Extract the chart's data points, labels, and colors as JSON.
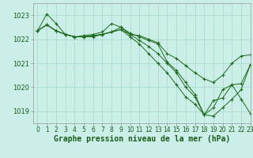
{
  "title": "Graphe pression niveau de la mer (hPa)",
  "bg_color": "#cceee8",
  "grid_color": "#aaddcc",
  "line_color": "#1a6b1a",
  "xlim": [
    -0.5,
    23
  ],
  "ylim": [
    1018.5,
    1023.5
  ],
  "yticks": [
    1019,
    1020,
    1021,
    1022,
    1023
  ],
  "xtick_labels": [
    "0",
    "1",
    "2",
    "3",
    "4",
    "5",
    "6",
    "7",
    "8",
    "9",
    "10",
    "11",
    "12",
    "13",
    "14",
    "15",
    "16",
    "17",
    "18",
    "19",
    "20",
    "21",
    "22",
    "23"
  ],
  "series": [
    [
      1022.35,
      1023.05,
      1022.65,
      1022.2,
      1022.1,
      1022.1,
      1022.1,
      1022.2,
      1022.3,
      1022.5,
      1022.2,
      1022.15,
      1022.0,
      1021.85,
      1021.4,
      1021.2,
      1020.9,
      1020.6,
      1020.35,
      1020.2,
      1020.5,
      1021.0,
      1021.3,
      1021.35
    ],
    [
      1022.35,
      1022.6,
      1022.35,
      1022.2,
      1022.1,
      1022.15,
      1022.2,
      1022.3,
      1022.65,
      1022.5,
      1022.25,
      1022.1,
      1021.95,
      1021.8,
      1021.05,
      1020.7,
      1020.2,
      1019.7,
      1018.85,
      1019.45,
      1019.55,
      1020.1,
      1019.5,
      1018.9
    ],
    [
      1022.35,
      1022.6,
      1022.35,
      1022.2,
      1022.1,
      1022.1,
      1022.15,
      1022.2,
      1022.3,
      1022.4,
      1022.2,
      1021.95,
      1021.7,
      1021.4,
      1021.0,
      1020.6,
      1020.0,
      1019.6,
      1018.85,
      1019.15,
      1019.9,
      1020.1,
      1020.15,
      1020.95
    ],
    [
      1022.35,
      1022.6,
      1022.35,
      1022.2,
      1022.1,
      1022.1,
      1022.15,
      1022.2,
      1022.3,
      1022.4,
      1022.1,
      1021.8,
      1021.4,
      1021.0,
      1020.6,
      1020.1,
      1019.6,
      1019.3,
      1018.85,
      1018.8,
      1019.15,
      1019.5,
      1019.9,
      1020.95
    ]
  ],
  "title_fontsize": 7,
  "tick_fontsize": 5.5,
  "label_color": "#1a5c1a"
}
